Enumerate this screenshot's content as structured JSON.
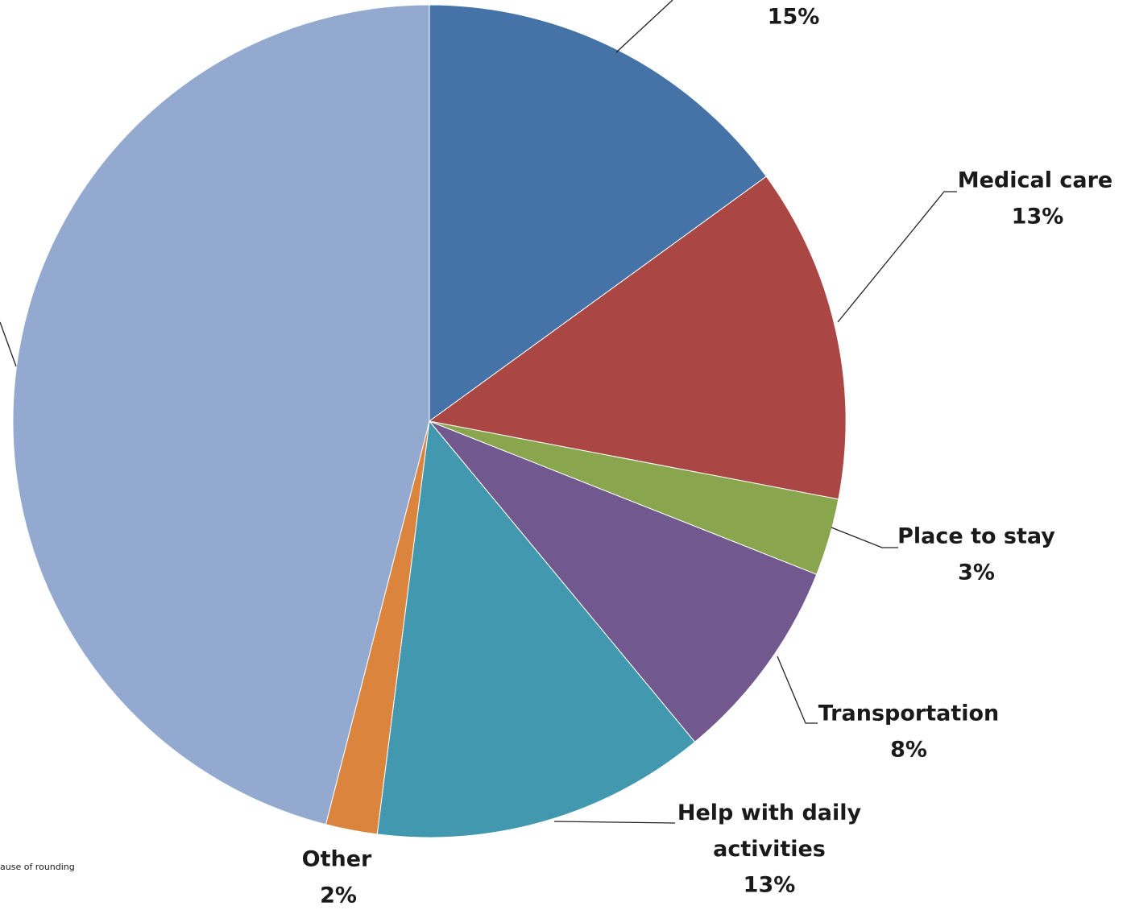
{
  "chart_data": {
    "type": "pie",
    "categories": [
      null,
      "Medical care",
      "Place to stay",
      "Transportation",
      "Help with daily activities",
      "Other",
      null
    ],
    "values": [
      15,
      13,
      3,
      8,
      13,
      2,
      46
    ],
    "value_labels": [
      "15%",
      "13%",
      "3%",
      "8%",
      "13%",
      "2%",
      null
    ],
    "colors": [
      "#4572a7",
      "#aa4643",
      "#89a54e",
      "#71588f",
      "#4198af",
      "#db843d",
      "#93a9cf"
    ],
    "note": "ause of rounding"
  }
}
